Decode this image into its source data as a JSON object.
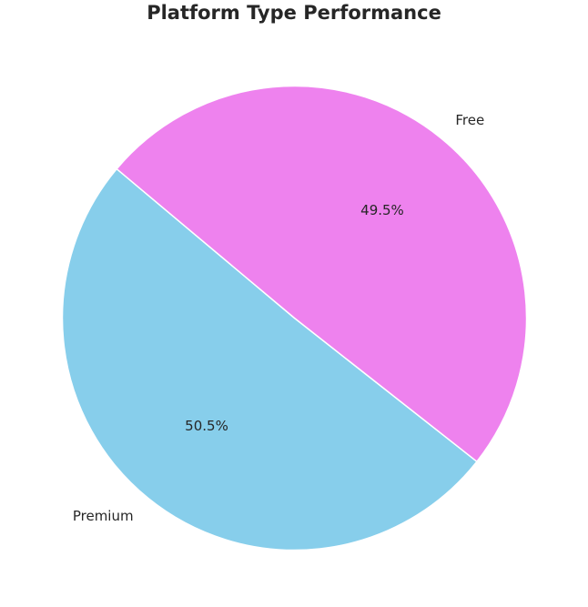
{
  "chart_data": {
    "type": "pie",
    "title": "Platform Type Performance",
    "slices": [
      {
        "label": "Premium",
        "value": 50.5,
        "pct_label": "50.5%",
        "color": "#87ceeb"
      },
      {
        "label": "Free",
        "value": 49.5,
        "pct_label": "49.5%",
        "color": "#ee82ee"
      }
    ],
    "legend": "none"
  }
}
